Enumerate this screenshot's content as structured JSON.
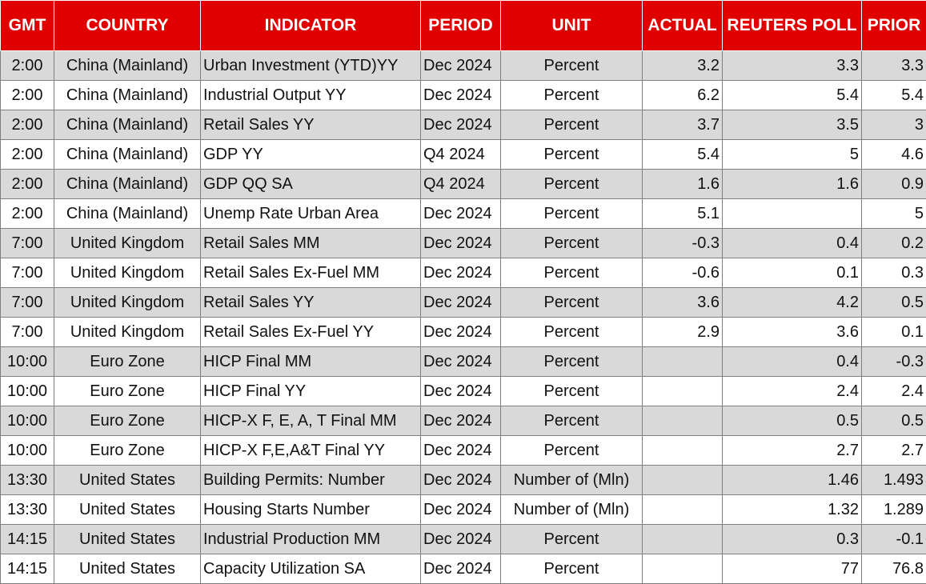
{
  "header": {
    "gmt": "GMT",
    "country": "COUNTRY",
    "indicator": "INDICATOR",
    "period": "PERIOD",
    "unit": "UNIT",
    "actual": "ACTUAL",
    "poll": "REUTERS POLL",
    "prior": "PRIOR"
  },
  "colors": {
    "header_bg": "#e00000",
    "header_text": "#ffffff",
    "band_shade": "#d9d9d9"
  },
  "rows": [
    {
      "gmt": "2:00",
      "country": "China (Mainland)",
      "indicator": "Urban Investment (YTD)YY",
      "period": "Dec 2024",
      "unit": "Percent",
      "actual": "3.2",
      "poll": "3.3",
      "prior": "3.3"
    },
    {
      "gmt": "2:00",
      "country": "China (Mainland)",
      "indicator": "Industrial Output YY",
      "period": "Dec 2024",
      "unit": "Percent",
      "actual": "6.2",
      "poll": "5.4",
      "prior": "5.4"
    },
    {
      "gmt": "2:00",
      "country": "China (Mainland)",
      "indicator": "Retail Sales YY",
      "period": "Dec 2024",
      "unit": "Percent",
      "actual": "3.7",
      "poll": "3.5",
      "prior": "3"
    },
    {
      "gmt": "2:00",
      "country": "China (Mainland)",
      "indicator": "GDP YY",
      "period": "Q4 2024",
      "unit": "Percent",
      "actual": "5.4",
      "poll": "5",
      "prior": "4.6"
    },
    {
      "gmt": "2:00",
      "country": "China (Mainland)",
      "indicator": "GDP QQ SA",
      "period": "Q4 2024",
      "unit": "Percent",
      "actual": "1.6",
      "poll": "1.6",
      "prior": "0.9"
    },
    {
      "gmt": "2:00",
      "country": "China (Mainland)",
      "indicator": "Unemp Rate Urban Area",
      "period": "Dec 2024",
      "unit": "Percent",
      "actual": "5.1",
      "poll": "",
      "prior": "5"
    },
    {
      "gmt": "7:00",
      "country": "United Kingdom",
      "indicator": "Retail Sales MM",
      "period": "Dec 2024",
      "unit": "Percent",
      "actual": "-0.3",
      "poll": "0.4",
      "prior": "0.2"
    },
    {
      "gmt": "7:00",
      "country": "United Kingdom",
      "indicator": "Retail Sales Ex-Fuel MM",
      "period": "Dec 2024",
      "unit": "Percent",
      "actual": "-0.6",
      "poll": "0.1",
      "prior": "0.3"
    },
    {
      "gmt": "7:00",
      "country": "United Kingdom",
      "indicator": "Retail Sales YY",
      "period": "Dec 2024",
      "unit": "Percent",
      "actual": "3.6",
      "poll": "4.2",
      "prior": "0.5"
    },
    {
      "gmt": "7:00",
      "country": "United Kingdom",
      "indicator": "Retail Sales Ex-Fuel YY",
      "period": "Dec 2024",
      "unit": "Percent",
      "actual": "2.9",
      "poll": "3.6",
      "prior": "0.1"
    },
    {
      "gmt": "10:00",
      "country": "Euro Zone",
      "indicator": "HICP Final MM",
      "period": "Dec 2024",
      "unit": "Percent",
      "actual": "",
      "poll": "0.4",
      "prior": "-0.3"
    },
    {
      "gmt": "10:00",
      "country": "Euro Zone",
      "indicator": "HICP Final YY",
      "period": "Dec 2024",
      "unit": "Percent",
      "actual": "",
      "poll": "2.4",
      "prior": "2.4"
    },
    {
      "gmt": "10:00",
      "country": "Euro Zone",
      "indicator": "HICP-X F, E, A, T Final MM",
      "period": "Dec 2024",
      "unit": "Percent",
      "actual": "",
      "poll": "0.5",
      "prior": "0.5"
    },
    {
      "gmt": "10:00",
      "country": "Euro Zone",
      "indicator": "HICP-X F,E,A&T Final YY",
      "period": "Dec 2024",
      "unit": "Percent",
      "actual": "",
      "poll": "2.7",
      "prior": "2.7"
    },
    {
      "gmt": "13:30",
      "country": "United States",
      "indicator": "Building Permits: Number",
      "period": "Dec 2024",
      "unit": "Number of (Mln)",
      "actual": "",
      "poll": "1.46",
      "prior": "1.493"
    },
    {
      "gmt": "13:30",
      "country": "United States",
      "indicator": "Housing Starts Number",
      "period": "Dec 2024",
      "unit": "Number of (Mln)",
      "actual": "",
      "poll": "1.32",
      "prior": "1.289"
    },
    {
      "gmt": "14:15",
      "country": "United States",
      "indicator": "Industrial Production MM",
      "period": "Dec 2024",
      "unit": "Percent",
      "actual": "",
      "poll": "0.3",
      "prior": "-0.1"
    },
    {
      "gmt": "14:15",
      "country": "United States",
      "indicator": "Capacity Utilization SA",
      "period": "Dec 2024",
      "unit": "Percent",
      "actual": "",
      "poll": "77",
      "prior": "76.8"
    }
  ]
}
